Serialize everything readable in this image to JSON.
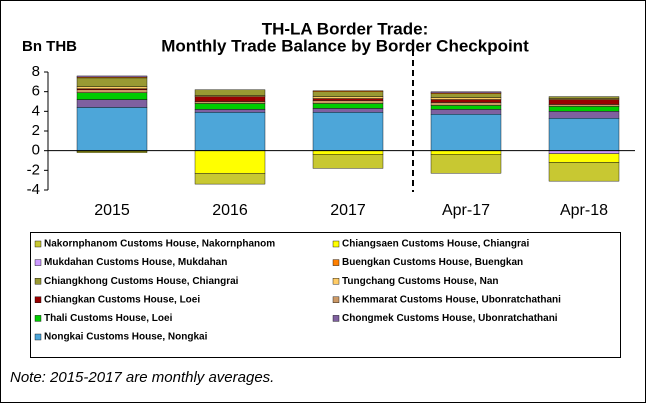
{
  "chart_data": {
    "type": "bar",
    "stacked": true,
    "title": [
      "TH-LA Border Trade:",
      "Monthly Trade Balance by Border Checkpoint"
    ],
    "y_label": "Bn THB",
    "note": "Note: 2015-2017 are monthly averages.",
    "categories": [
      "2015",
      "2016",
      "2017",
      "Apr-17",
      "Apr-18"
    ],
    "ylim": [
      -4,
      8
    ],
    "yticks": [
      -4,
      -2,
      0,
      2,
      4,
      6,
      8
    ],
    "series": [
      {
        "name": "Nakornphanom Customs House, Nakornphanom",
        "color": "#c8c832",
        "values": [
          -0.1,
          -1.1,
          -1.4,
          -1.9,
          -1.9
        ]
      },
      {
        "name": "Chiangsaen Customs House, Chiangrai",
        "color": "#ffff00",
        "values": [
          -0.1,
          -2.3,
          -0.4,
          -0.4,
          -0.9
        ]
      },
      {
        "name": "Mukdahan Customs House, Mukdahan",
        "color": "#cc99ff",
        "values": [
          0.1,
          0,
          0,
          0.1,
          -0.3
        ]
      },
      {
        "name": "Buengkan Customs House, Buengkan",
        "color": "#ff8000",
        "values": [
          0.1,
          0,
          0.1,
          0.1,
          0
        ]
      },
      {
        "name": "Chiangkhong Customs House, Chiangrai",
        "color": "#999933",
        "values": [
          0.9,
          0.6,
          0.5,
          0.4,
          0.2
        ]
      },
      {
        "name": "Tungchang Customs House, Nan",
        "color": "#ffcc66",
        "values": [
          0.2,
          0.1,
          0.2,
          0.2,
          0.1
        ]
      },
      {
        "name": "Chiangkan Customs House, Loei",
        "color": "#990000",
        "values": [
          0.1,
          0.5,
          0.2,
          0.3,
          0.5
        ]
      },
      {
        "name": "Khemmarat Customs House, Ubonratchathani",
        "color": "#cc9966",
        "values": [
          0.3,
          0.2,
          0.3,
          0.3,
          0.2
        ]
      },
      {
        "name": "Thali Customs House, Loei",
        "color": "#00cc00",
        "values": [
          0.7,
          0.6,
          0.5,
          0.4,
          0.5
        ]
      },
      {
        "name": "Chongmek Customs House, Ubonratchathani",
        "color": "#7f60a0",
        "values": [
          0.8,
          0.3,
          0.4,
          0.5,
          0.7
        ]
      },
      {
        "name": "Nongkai Customs House, Nongkai",
        "color": "#4da6d9",
        "values": [
          4.4,
          3.9,
          3.9,
          3.7,
          3.3
        ]
      }
    ]
  }
}
